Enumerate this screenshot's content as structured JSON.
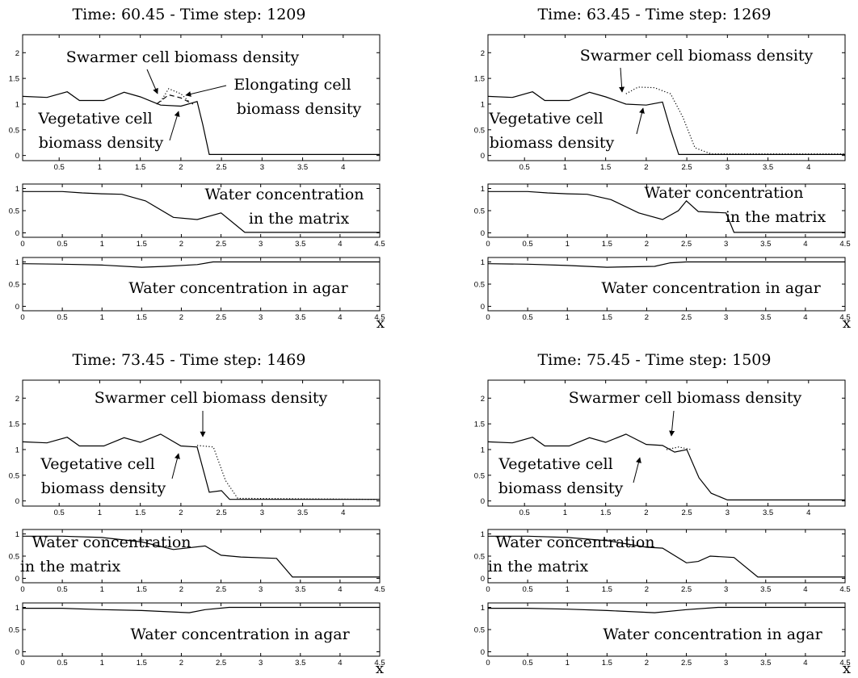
{
  "figure": {
    "panels": [
      {
        "title": "Time: 60.45 - Time step: 1209",
        "top": {
          "annotations": {
            "swarmer": "Swarmer cell biomass density",
            "elongating_1": "Elongating cell",
            "elongating_2": "biomass density",
            "vegetative_1": "Vegetative cell",
            "vegetative_2": "biomass density"
          }
        },
        "mid": {
          "annotations": {
            "water_1": "Water concentration",
            "water_2": "in the matrix"
          }
        },
        "bot": {
          "annotations": {
            "agar": "Water concentration in agar"
          }
        }
      },
      {
        "title": "Time: 63.45 - Time step: 1269",
        "top": {
          "annotations": {
            "swarmer": "Swarmer cell biomass density",
            "vegetative_1": "Vegetative cell",
            "vegetative_2": "biomass density"
          }
        },
        "mid": {
          "annotations": {
            "water_1": "Water concentration",
            "water_2": "in the matrix"
          }
        },
        "bot": {
          "annotations": {
            "agar": "Water concentration in agar"
          }
        }
      },
      {
        "title": "Time: 73.45 - Time step: 1469",
        "top": {
          "annotations": {
            "swarmer": "Swarmer cell biomass density",
            "vegetative_1": "Vegetative cell",
            "vegetative_2": "biomass density"
          }
        },
        "mid": {
          "annotations": {
            "water_1": "Water concentration",
            "water_2": "in the matrix"
          }
        },
        "bot": {
          "annotations": {
            "agar": "Water concentration in agar"
          }
        }
      },
      {
        "title": "Time: 75.45 - Time step: 1509",
        "top": {
          "annotations": {
            "swarmer": "Swarmer cell biomass density",
            "vegetative_1": "Vegetative cell",
            "vegetative_2": "biomass density"
          }
        },
        "mid": {
          "annotations": {
            "water_1": "Water concentration",
            "water_2": "in the matrix"
          }
        },
        "bot": {
          "annotations": {
            "agar": "Water concentration in agar"
          }
        }
      }
    ]
  },
  "chart_data": [
    {
      "type": "line",
      "title": "Time: 60.45 - Time step: 1209",
      "xlabel": "x",
      "subplots": [
        {
          "name": "biomass",
          "xlim": [
            0.05,
            4.45
          ],
          "ylim": [
            -0.1,
            2.35
          ],
          "xticks": [
            0.5,
            1,
            1.5,
            2,
            2.5,
            3,
            3.5,
            4
          ],
          "yticks": [
            0,
            0.5,
            1,
            1.5,
            2
          ],
          "series": [
            {
              "name": "Vegetative cell biomass density",
              "style": "solid",
              "x": [
                0.05,
                0.35,
                0.6,
                0.75,
                1.05,
                1.3,
                1.5,
                1.75,
                2.0,
                2.2,
                2.27,
                2.35,
                4.45
              ],
              "y": [
                1.15,
                1.13,
                1.24,
                1.07,
                1.07,
                1.23,
                1.14,
                0.98,
                0.96,
                1.05,
                0.6,
                0.02,
                0.02
              ]
            },
            {
              "name": "Swarmer cell biomass density",
              "style": "dotted",
              "x": [
                1.75,
                1.85,
                2.0,
                2.1
              ],
              "y": [
                1.05,
                1.3,
                1.2,
                1.05
              ]
            },
            {
              "name": "Elongating cell biomass density",
              "style": "dashed",
              "x": [
                1.7,
                1.85,
                2.0,
                2.15
              ],
              "y": [
                1.0,
                1.18,
                1.12,
                1.0
              ]
            }
          ]
        },
        {
          "name": "water_matrix",
          "xlim": [
            0,
            4.5
          ],
          "ylim": [
            -0.1,
            1.1
          ],
          "xticks": [
            0,
            0.5,
            1,
            1.5,
            2,
            2.5,
            3,
            3.5,
            4,
            4.5
          ],
          "yticks": [
            0,
            0.5,
            1
          ],
          "series": [
            {
              "name": "Water concentration in the matrix",
              "style": "solid",
              "x": [
                0,
                0.5,
                0.75,
                1,
                1.25,
                1.55,
                1.9,
                2.2,
                2.5,
                2.8,
                3.0,
                4.5
              ],
              "y": [
                0.93,
                0.93,
                0.9,
                0.88,
                0.87,
                0.72,
                0.35,
                0.3,
                0.45,
                0.01,
                0.01,
                0.01
              ]
            }
          ]
        },
        {
          "name": "water_agar",
          "xlim": [
            0,
            4.5
          ],
          "ylim": [
            -0.1,
            1.1
          ],
          "xticks": [
            0,
            0.5,
            1,
            1.5,
            2,
            2.5,
            3,
            3.5,
            4,
            4.5
          ],
          "yticks": [
            0,
            0.5,
            1
          ],
          "series": [
            {
              "name": "Water concentration in agar",
              "style": "solid",
              "x": [
                0,
                0.5,
                1,
                1.5,
                1.8,
                2.2,
                2.4,
                4.5
              ],
              "y": [
                0.96,
                0.95,
                0.93,
                0.88,
                0.9,
                0.94,
                1.0,
                1.0
              ]
            }
          ]
        }
      ]
    },
    {
      "type": "line",
      "title": "Time: 63.45 - Time step: 1269",
      "xlabel": "x",
      "subplots": [
        {
          "name": "biomass",
          "xlim": [
            0.05,
            4.45
          ],
          "ylim": [
            -0.1,
            2.35
          ],
          "xticks": [
            0.5,
            1,
            1.5,
            2,
            2.5,
            3,
            3.5,
            4
          ],
          "yticks": [
            0,
            0.5,
            1,
            1.5,
            2
          ],
          "series": [
            {
              "name": "Vegetative cell biomass density",
              "style": "solid",
              "x": [
                0.05,
                0.35,
                0.6,
                0.75,
                1.05,
                1.3,
                1.5,
                1.75,
                2.0,
                2.2,
                2.3,
                2.4,
                4.45
              ],
              "y": [
                1.15,
                1.13,
                1.24,
                1.07,
                1.07,
                1.23,
                1.14,
                1.0,
                0.98,
                1.04,
                0.5,
                0.02,
                0.02
              ]
            },
            {
              "name": "Swarmer cell biomass density",
              "style": "dotted",
              "x": [
                1.75,
                1.9,
                2.1,
                2.3,
                2.45,
                2.6,
                2.8,
                4.45
              ],
              "y": [
                1.2,
                1.33,
                1.32,
                1.2,
                0.75,
                0.15,
                0.03,
                0.03
              ]
            }
          ]
        },
        {
          "name": "water_matrix",
          "xlim": [
            0,
            4.5
          ],
          "ylim": [
            -0.1,
            1.1
          ],
          "xticks": [
            0,
            0.5,
            1,
            1.5,
            2,
            2.5,
            3,
            3.5,
            4,
            4.5
          ],
          "yticks": [
            0,
            0.5,
            1
          ],
          "series": [
            {
              "name": "Water concentration in the matrix",
              "style": "solid",
              "x": [
                0,
                0.5,
                0.75,
                1,
                1.25,
                1.55,
                1.9,
                2.2,
                2.4,
                2.5,
                2.65,
                3.0,
                3.1,
                4.5
              ],
              "y": [
                0.93,
                0.93,
                0.9,
                0.88,
                0.87,
                0.75,
                0.45,
                0.3,
                0.5,
                0.72,
                0.48,
                0.45,
                0.01,
                0.01
              ]
            }
          ]
        },
        {
          "name": "water_agar",
          "xlim": [
            0,
            4.5
          ],
          "ylim": [
            -0.1,
            1.1
          ],
          "xticks": [
            0,
            0.5,
            1,
            1.5,
            2,
            2.5,
            3,
            3.5,
            4,
            4.5
          ],
          "yticks": [
            0,
            0.5,
            1
          ],
          "series": [
            {
              "name": "Water concentration in agar",
              "style": "solid",
              "x": [
                0,
                0.5,
                1,
                1.5,
                2.1,
                2.3,
                2.5,
                3.1,
                4.5
              ],
              "y": [
                0.96,
                0.95,
                0.92,
                0.88,
                0.9,
                0.98,
                1.0,
                1.0,
                1.0
              ]
            }
          ]
        }
      ]
    },
    {
      "type": "line",
      "title": "Time: 73.45 - Time step: 1469",
      "xlabel": "x",
      "subplots": [
        {
          "name": "biomass",
          "xlim": [
            0.05,
            4.45
          ],
          "ylim": [
            -0.1,
            2.35
          ],
          "xticks": [
            0.5,
            1,
            1.5,
            2,
            2.5,
            3,
            3.5,
            4
          ],
          "yticks": [
            0,
            0.5,
            1,
            1.5,
            2
          ],
          "series": [
            {
              "name": "Vegetative cell biomass density",
              "style": "solid",
              "x": [
                0.05,
                0.35,
                0.6,
                0.75,
                1.05,
                1.3,
                1.5,
                1.75,
                2.0,
                2.2,
                2.35,
                2.5,
                2.6,
                4.45
              ],
              "y": [
                1.15,
                1.13,
                1.24,
                1.07,
                1.07,
                1.23,
                1.14,
                1.3,
                1.07,
                1.05,
                0.17,
                0.2,
                0.03,
                0.03
              ]
            },
            {
              "name": "Swarmer cell biomass density",
              "style": "dotted",
              "x": [
                2.2,
                2.4,
                2.55,
                2.7,
                4.45
              ],
              "y": [
                1.08,
                1.05,
                0.4,
                0.05,
                0.03
              ]
            }
          ]
        },
        {
          "name": "water_matrix",
          "xlim": [
            0,
            4.5
          ],
          "ylim": [
            -0.1,
            1.1
          ],
          "xticks": [
            0,
            0.5,
            1,
            1.5,
            2,
            2.5,
            3,
            3.5,
            4,
            4.5
          ],
          "yticks": [
            0,
            0.5,
            1
          ],
          "series": [
            {
              "name": "Water concentration in the matrix",
              "style": "solid",
              "x": [
                0,
                0.5,
                1,
                1.5,
                1.9,
                2.3,
                2.5,
                2.75,
                3.2,
                3.4,
                4.5
              ],
              "y": [
                0.95,
                0.95,
                0.92,
                0.82,
                0.65,
                0.73,
                0.52,
                0.48,
                0.45,
                0.03,
                0.03
              ]
            }
          ]
        },
        {
          "name": "water_agar",
          "xlim": [
            0,
            4.5
          ],
          "ylim": [
            -0.1,
            1.1
          ],
          "xticks": [
            0,
            0.5,
            1,
            1.5,
            2,
            2.5,
            3,
            3.5,
            4,
            4.5
          ],
          "yticks": [
            0,
            0.5,
            1
          ],
          "series": [
            {
              "name": "Water concentration in agar",
              "style": "solid",
              "x": [
                0,
                0.5,
                1,
                1.5,
                2.1,
                2.3,
                2.6,
                4.5
              ],
              "y": [
                0.98,
                0.98,
                0.95,
                0.93,
                0.88,
                0.95,
                1.0,
                1.0
              ]
            }
          ]
        }
      ]
    },
    {
      "type": "line",
      "title": "Time: 75.45 - Time step: 1509",
      "xlabel": "x",
      "subplots": [
        {
          "name": "biomass",
          "xlim": [
            0.05,
            4.45
          ],
          "ylim": [
            -0.1,
            2.35
          ],
          "xticks": [
            0.5,
            1,
            1.5,
            2,
            2.5,
            3,
            3.5,
            4
          ],
          "yticks": [
            0,
            0.5,
            1,
            1.5,
            2
          ],
          "series": [
            {
              "name": "Vegetative cell biomass density",
              "style": "solid",
              "x": [
                0.05,
                0.35,
                0.6,
                0.75,
                1.05,
                1.3,
                1.5,
                1.75,
                2.0,
                2.2,
                2.35,
                2.5,
                2.65,
                2.8,
                3.0,
                4.45
              ],
              "y": [
                1.15,
                1.13,
                1.24,
                1.07,
                1.07,
                1.23,
                1.14,
                1.3,
                1.1,
                1.08,
                0.95,
                1.0,
                0.45,
                0.15,
                0.02,
                0.02
              ]
            },
            {
              "name": "Swarmer cell biomass density",
              "style": "dotted",
              "x": [
                2.25,
                2.4,
                2.55
              ],
              "y": [
                1.0,
                1.05,
                1.0
              ]
            }
          ]
        },
        {
          "name": "water_matrix",
          "xlim": [
            0,
            4.5
          ],
          "ylim": [
            -0.1,
            1.1
          ],
          "xticks": [
            0,
            0.5,
            1,
            1.5,
            2,
            2.5,
            3,
            3.5,
            4,
            4.5
          ],
          "yticks": [
            0,
            0.5,
            1
          ],
          "series": [
            {
              "name": "Water concentration in the matrix",
              "style": "solid",
              "x": [
                0,
                0.5,
                1,
                1.5,
                2.0,
                2.2,
                2.5,
                2.65,
                2.8,
                3.1,
                3.4,
                4.5
              ],
              "y": [
                0.95,
                0.95,
                0.92,
                0.85,
                0.7,
                0.68,
                0.35,
                0.38,
                0.5,
                0.47,
                0.03,
                0.03
              ]
            }
          ]
        },
        {
          "name": "water_agar",
          "xlim": [
            0,
            4.5
          ],
          "ylim": [
            -0.1,
            1.1
          ],
          "xticks": [
            0,
            0.5,
            1,
            1.5,
            2,
            2.5,
            3,
            3.5,
            4,
            4.5
          ],
          "yticks": [
            0,
            0.5,
            1
          ],
          "series": [
            {
              "name": "Water concentration in agar",
              "style": "solid",
              "x": [
                0,
                0.5,
                1,
                1.5,
                2.1,
                2.5,
                2.9,
                3.3,
                4.5
              ],
              "y": [
                0.98,
                0.98,
                0.96,
                0.93,
                0.88,
                0.95,
                1.0,
                1.0,
                1.0
              ]
            }
          ]
        }
      ]
    }
  ]
}
